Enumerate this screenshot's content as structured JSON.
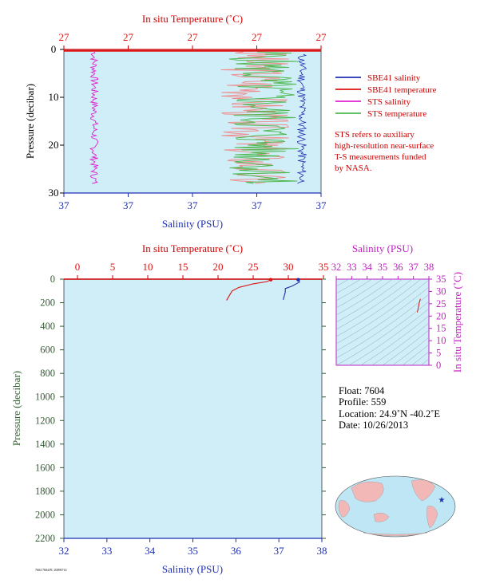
{
  "colors": {
    "plot_bg": "#cfeef8",
    "sbe_salinity": "#1f2fb0",
    "sbe_temperature": "#dd1111",
    "sts_salinity": "#e020d0",
    "sts_temperature": "#4fb84f",
    "sts_temperature_pale": "#f08e8e",
    "pressure_axis": "#2e5e2e",
    "ts_axis": "#c020c0",
    "map_land": "#f2b8b8",
    "map_ocean": "#bfe6f5"
  },
  "top_panel": {
    "temp_axis_title": "In situ Temperature (˚C)",
    "temp_ticks": [
      "27",
      "27",
      "27",
      "27",
      "27"
    ],
    "sal_axis_title": "Salinity (PSU)",
    "sal_ticks": [
      "37",
      "37",
      "37",
      "37",
      "37"
    ],
    "pressure_title": "Pressure (decibar)",
    "pressure_ticks": [
      "0",
      "10",
      "20",
      "30"
    ],
    "legend": [
      {
        "label": "SBE41 salinity",
        "color_key": "sbe_salinity"
      },
      {
        "label": "SBE41 temperature",
        "color_key": "sbe_temperature"
      },
      {
        "label": "STS salinity",
        "color_key": "sts_salinity"
      },
      {
        "label": "STS temperature",
        "color_key": "sts_temperature"
      }
    ],
    "note_lines": [
      "STS refers to auxiliary",
      "high-resolution near-surface",
      "T-S measurements funded",
      "by NASA."
    ]
  },
  "bottom_panel": {
    "temp_axis_title": "In situ Temperature (˚C)",
    "temp_ticks": [
      "0",
      "5",
      "10",
      "15",
      "20",
      "25",
      "30",
      "35"
    ],
    "sal_axis_title": "Salinity (PSU)",
    "sal_ticks": [
      "32",
      "33",
      "34",
      "35",
      "36",
      "37",
      "38"
    ],
    "pressure_title": "Pressure (decibar)",
    "pressure_ticks": [
      "0",
      "200",
      "400",
      "600",
      "800",
      "1000",
      "1200",
      "1400",
      "1600",
      "1800",
      "2000",
      "2200"
    ]
  },
  "ts_panel": {
    "sal_axis_title": "Salinity (PSU)",
    "sal_ticks": [
      "32",
      "33",
      "34",
      "35",
      "36",
      "37",
      "38"
    ],
    "temp_axis_title": "In situ Temperature (˚C)",
    "temp_ticks": [
      "0",
      "5",
      "10",
      "15",
      "20",
      "25",
      "30",
      "35"
    ]
  },
  "float_info": {
    "float": "Float:  7604",
    "profile": "Profile:  559",
    "location": "Location:  24.9˚N  -40.2˚E",
    "date": "Date:  10/26/2013"
  },
  "footer_code": "7604 7604.PL 20090714",
  "chart_data": [
    {
      "type": "line",
      "panel": "near-surface (0-30 dbar)",
      "ylim": [
        30,
        0
      ],
      "series": [
        {
          "name": "SBE41 salinity",
          "x_space": "salinity",
          "points": [
            [
              37.0,
              2
            ],
            [
              37.0,
              4
            ],
            [
              37.0,
              6
            ],
            [
              37.0,
              8
            ],
            [
              37.0,
              10
            ],
            [
              37.0,
              12
            ],
            [
              37.0,
              14
            ],
            [
              37.0,
              16
            ],
            [
              37.0,
              18
            ],
            [
              37.0,
              20
            ],
            [
              37.0,
              22
            ],
            [
              37.0,
              24
            ],
            [
              37.0,
              26
            ],
            [
              37.0,
              28
            ]
          ]
        },
        {
          "name": "SBE41 temperature",
          "x_space": "temperature",
          "points": [
            [
              27.0,
              0.3
            ],
            [
              27.0,
              30
            ]
          ]
        },
        {
          "name": "STS salinity",
          "x_space": "salinity",
          "points": [
            [
              37.0,
              0.5
            ],
            [
              37.0,
              2.5
            ],
            [
              37.0,
              5
            ],
            [
              37.0,
              10
            ],
            [
              37.0,
              15
            ],
            [
              37.0,
              20
            ],
            [
              37.0,
              25
            ],
            [
              37.0,
              28
            ]
          ]
        },
        {
          "name": "STS temperature",
          "x_space": "temperature",
          "points": [
            [
              27.0,
              0.5
            ],
            [
              27.0,
              4
            ],
            [
              27.0,
              8
            ],
            [
              27.0,
              12
            ],
            [
              27.0,
              16
            ],
            [
              27.0,
              20
            ],
            [
              27.0,
              24
            ],
            [
              27.0,
              28
            ]
          ]
        }
      ]
    },
    {
      "type": "line",
      "panel": "full profile",
      "ylim": [
        2200,
        0
      ],
      "temperature_xlim": [
        0,
        35
      ],
      "salinity_xlim": [
        32,
        38
      ],
      "series": [
        {
          "name": "SBE41 temperature",
          "x_space": "temperature",
          "points": [
            [
              27.5,
              5
            ],
            [
              27.0,
              20
            ],
            [
              25.0,
              40
            ],
            [
              23.0,
              70
            ],
            [
              22.0,
              100
            ],
            [
              21.5,
              150
            ],
            [
              21.2,
              180
            ]
          ]
        },
        {
          "name": "SBE41 salinity",
          "x_space": "salinity",
          "points": [
            [
              37.45,
              5
            ],
            [
              37.48,
              25
            ],
            [
              37.3,
              60
            ],
            [
              37.15,
              80
            ],
            [
              37.15,
              110
            ],
            [
              37.12,
              150
            ],
            [
              37.1,
              175
            ]
          ]
        }
      ]
    },
    {
      "type": "scatter",
      "panel": "T-S diagram",
      "xlim": [
        32,
        38
      ],
      "ylim": [
        0,
        35
      ],
      "points": [
        [
          37.25,
          21.5
        ],
        [
          37.3,
          23
        ],
        [
          37.35,
          24.5
        ],
        [
          37.4,
          26
        ],
        [
          37.45,
          27
        ]
      ]
    }
  ]
}
